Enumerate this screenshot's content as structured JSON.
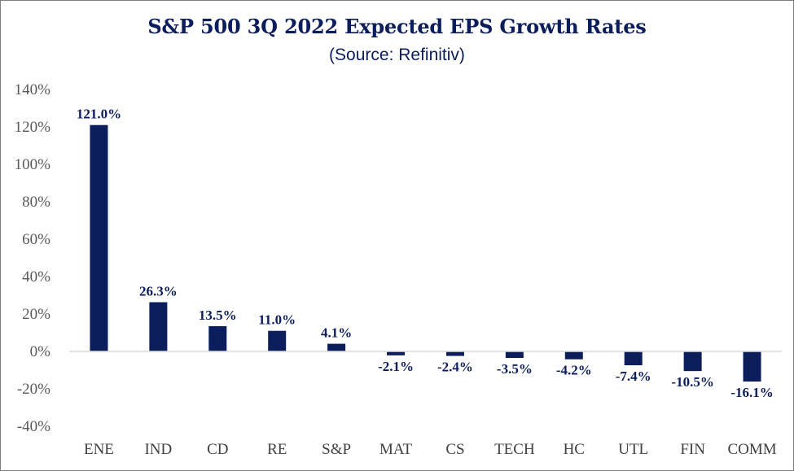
{
  "chart_data": {
    "type": "bar",
    "title": "S&P 500 3Q 2022 Expected EPS Growth Rates",
    "subtitle": "(Source: Refinitiv)",
    "xlabel": "",
    "ylabel": "",
    "ylim": [
      -40,
      140
    ],
    "yticks": [
      140,
      120,
      100,
      80,
      60,
      40,
      20,
      0,
      -20,
      -40
    ],
    "ytick_labels": [
      "140%",
      "120%",
      "100%",
      "80%",
      "60%",
      "40%",
      "20%",
      "0%",
      "-20%",
      "-40%"
    ],
    "categories": [
      "ENE",
      "IND",
      "CD",
      "RE",
      "S&P",
      "MAT",
      "CS",
      "TECH",
      "HC",
      "UTL",
      "FIN",
      "COMM"
    ],
    "values": [
      121.0,
      26.3,
      13.5,
      11.0,
      4.1,
      -2.1,
      -2.4,
      -3.5,
      -4.2,
      -7.4,
      -10.5,
      -16.1
    ],
    "data_labels": [
      "121.0%",
      "26.3%",
      "13.5%",
      "11.0%",
      "4.1%",
      "-2.1%",
      "-2.4%",
      "-3.5%",
      "-4.2%",
      "-7.4%",
      "-10.5%",
      "-16.1%"
    ],
    "bar_color": "#0c1d5c",
    "grid": false,
    "legend": "none"
  }
}
